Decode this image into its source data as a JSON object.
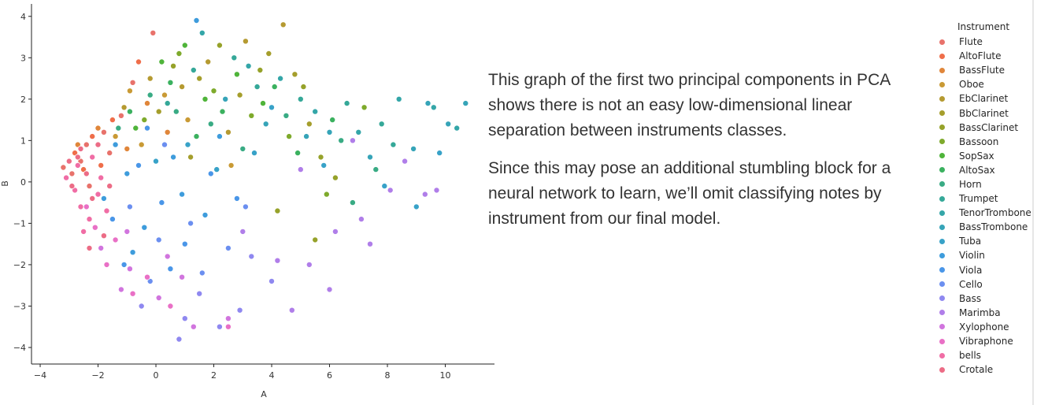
{
  "chart_data": {
    "type": "scatter",
    "xlabel": "A",
    "ylabel": "B",
    "xlim": [
      -4.3,
      11.7
    ],
    "ylim": [
      -4.4,
      4.3
    ],
    "xticks": [
      -4,
      -2,
      0,
      2,
      4,
      6,
      8,
      10
    ],
    "yticks": [
      -4,
      -3,
      -2,
      -1,
      0,
      1,
      2,
      3,
      4
    ],
    "legend_title": "Instrument",
    "legend_position": "right",
    "grid": false,
    "series": [
      {
        "name": "Flute",
        "color": "#e8726b",
        "points": [
          [
            -3.2,
            0.35
          ],
          [
            -2.9,
            0.2
          ],
          [
            -2.6,
            0.5
          ],
          [
            -2.4,
            0.9
          ],
          [
            -1.8,
            1.2
          ],
          [
            -1.2,
            1.6
          ],
          [
            -0.8,
            2.4
          ],
          [
            -0.1,
            3.6
          ],
          [
            -2.3,
            -0.1
          ],
          [
            -1.6,
            0.7
          ]
        ]
      },
      {
        "name": "AltoFlute",
        "color": "#ef6e4a",
        "points": [
          [
            -2.8,
            0.7
          ],
          [
            -2.2,
            1.1
          ],
          [
            -1.5,
            1.5
          ],
          [
            -0.6,
            2.9
          ],
          [
            -2.5,
            0.3
          ],
          [
            -1.9,
            0.4
          ]
        ]
      },
      {
        "name": "BassFlute",
        "color": "#e0863a",
        "points": [
          [
            -2.7,
            0.9
          ],
          [
            -2.0,
            1.3
          ],
          [
            -1.0,
            0.8
          ],
          [
            -0.3,
            1.9
          ],
          [
            0.4,
            1.2
          ]
        ]
      },
      {
        "name": "Oboe",
        "color": "#c99a35",
        "points": [
          [
            -1.4,
            1.1
          ],
          [
            -0.5,
            0.9
          ],
          [
            0.3,
            2.1
          ],
          [
            1.1,
            1.5
          ],
          [
            2.6,
            0.4
          ],
          [
            -0.9,
            2.2
          ]
        ]
      },
      {
        "name": "EbClarinet",
        "color": "#b59a31",
        "points": [
          [
            -0.2,
            2.5
          ],
          [
            0.9,
            2.3
          ],
          [
            1.8,
            2.9
          ],
          [
            3.1,
            3.4
          ],
          [
            4.4,
            3.8
          ],
          [
            2.5,
            1.2
          ],
          [
            -1.1,
            1.8
          ]
        ]
      },
      {
        "name": "BbClarinet",
        "color": "#a59e2c",
        "points": [
          [
            0.1,
            1.7
          ],
          [
            1.5,
            2.5
          ],
          [
            2.9,
            2.1
          ],
          [
            3.9,
            3.1
          ],
          [
            4.8,
            2.6
          ],
          [
            5.3,
            1.4
          ],
          [
            1.2,
            0.6
          ]
        ]
      },
      {
        "name": "BassClarinet",
        "color": "#96a22a",
        "points": [
          [
            0.6,
            2.8
          ],
          [
            2.2,
            3.3
          ],
          [
            3.6,
            2.7
          ],
          [
            5.1,
            2.3
          ],
          [
            5.7,
            0.6
          ],
          [
            6.2,
            0.1
          ],
          [
            4.2,
            -0.7
          ],
          [
            5.5,
            -1.4
          ]
        ]
      },
      {
        "name": "Bassoon",
        "color": "#7eaa2c",
        "points": [
          [
            -0.4,
            1.5
          ],
          [
            0.8,
            3.1
          ],
          [
            2.0,
            2.2
          ],
          [
            3.3,
            1.6
          ],
          [
            4.6,
            1.1
          ],
          [
            7.2,
            1.8
          ],
          [
            5.9,
            -0.3
          ]
        ]
      },
      {
        "name": "SopSax",
        "color": "#4fb43a",
        "points": [
          [
            0.2,
            2.9
          ],
          [
            1.0,
            3.3
          ],
          [
            1.7,
            2.0
          ],
          [
            2.8,
            2.6
          ],
          [
            3.7,
            1.9
          ],
          [
            -0.7,
            1.3
          ]
        ]
      },
      {
        "name": "AltoSax",
        "color": "#3bb15f",
        "points": [
          [
            -0.9,
            1.7
          ],
          [
            0.5,
            2.4
          ],
          [
            1.4,
            1.1
          ],
          [
            2.3,
            1.7
          ],
          [
            4.1,
            2.3
          ],
          [
            6.1,
            1.5
          ],
          [
            4.9,
            0.7
          ]
        ]
      },
      {
        "name": "Horn",
        "color": "#39ab84",
        "points": [
          [
            -1.3,
            1.3
          ],
          [
            -0.2,
            2.1
          ],
          [
            0.7,
            1.7
          ],
          [
            1.9,
            1.4
          ],
          [
            3.0,
            0.8
          ],
          [
            4.5,
            1.6
          ],
          [
            6.4,
            1.0
          ],
          [
            7.6,
            0.3
          ],
          [
            6.8,
            -0.5
          ]
        ]
      },
      {
        "name": "Trumpet",
        "color": "#35a898",
        "points": [
          [
            0.4,
            1.9
          ],
          [
            1.3,
            2.7
          ],
          [
            2.7,
            3.0
          ],
          [
            3.5,
            2.3
          ],
          [
            5.0,
            2.0
          ],
          [
            6.6,
            1.9
          ],
          [
            7.8,
            1.4
          ],
          [
            8.2,
            0.9
          ]
        ]
      },
      {
        "name": "TenorTrombone",
        "color": "#34a6a8",
        "points": [
          [
            1.6,
            3.6
          ],
          [
            3.2,
            2.8
          ],
          [
            4.3,
            2.5
          ],
          [
            5.5,
            1.7
          ],
          [
            7.0,
            1.2
          ],
          [
            8.4,
            2.0
          ],
          [
            9.6,
            1.8
          ],
          [
            10.4,
            1.3
          ]
        ]
      },
      {
        "name": "BassTrombone",
        "color": "#36a4b8",
        "points": [
          [
            2.4,
            2.0
          ],
          [
            3.8,
            1.4
          ],
          [
            5.2,
            1.1
          ],
          [
            6.0,
            1.2
          ],
          [
            7.4,
            0.6
          ],
          [
            8.9,
            0.8
          ],
          [
            9.4,
            1.9
          ],
          [
            10.1,
            1.4
          ],
          [
            10.7,
            1.9
          ]
        ]
      },
      {
        "name": "Tuba",
        "color": "#38a2c8",
        "points": [
          [
            0.0,
            0.5
          ],
          [
            1.1,
            0.9
          ],
          [
            2.1,
            0.3
          ],
          [
            3.4,
            0.7
          ],
          [
            4.0,
            1.8
          ],
          [
            5.8,
            0.4
          ],
          [
            7.9,
            -0.1
          ],
          [
            9.0,
            -0.6
          ],
          [
            9.8,
            0.7
          ]
        ]
      },
      {
        "name": "Violin",
        "color": "#3e9cdc",
        "points": [
          [
            -1.8,
            -0.4
          ],
          [
            -1.0,
            0.2
          ],
          [
            -0.4,
            -1.1
          ],
          [
            0.6,
            0.6
          ],
          [
            1.4,
            3.9
          ],
          [
            2.2,
            1.1
          ],
          [
            -0.8,
            -1.7
          ],
          [
            0.9,
            -0.3
          ],
          [
            1.7,
            -0.8
          ],
          [
            -1.4,
            0.9
          ]
        ]
      },
      {
        "name": "Viola",
        "color": "#4a96e8",
        "points": [
          [
            -1.5,
            -0.9
          ],
          [
            -0.6,
            0.4
          ],
          [
            0.2,
            -0.5
          ],
          [
            1.0,
            -1.5
          ],
          [
            1.9,
            0.2
          ],
          [
            2.8,
            -0.4
          ],
          [
            -0.3,
            1.3
          ],
          [
            0.5,
            -2.1
          ],
          [
            -1.1,
            -2.0
          ]
        ]
      },
      {
        "name": "Cello",
        "color": "#6b8ff0",
        "points": [
          [
            -0.9,
            -0.6
          ],
          [
            0.1,
            -1.4
          ],
          [
            1.2,
            -1.0
          ],
          [
            2.5,
            -1.6
          ],
          [
            3.1,
            -0.6
          ],
          [
            -0.2,
            -2.4
          ],
          [
            1.6,
            -2.2
          ],
          [
            0.3,
            0.9
          ]
        ]
      },
      {
        "name": "Bass",
        "color": "#8f88f0",
        "points": [
          [
            0.8,
            -3.8
          ],
          [
            1.5,
            -2.7
          ],
          [
            2.9,
            -3.1
          ],
          [
            4.0,
            -2.4
          ],
          [
            3.3,
            -1.8
          ],
          [
            -0.5,
            -3.0
          ],
          [
            1.0,
            -3.3
          ],
          [
            2.2,
            -3.5
          ]
        ]
      },
      {
        "name": "Marimba",
        "color": "#b07ee9",
        "points": [
          [
            3.0,
            -1.2
          ],
          [
            4.2,
            -1.9
          ],
          [
            5.3,
            -2.0
          ],
          [
            6.2,
            -1.2
          ],
          [
            7.1,
            -0.9
          ],
          [
            8.1,
            -0.2
          ],
          [
            9.3,
            -0.3
          ],
          [
            9.7,
            -0.2
          ],
          [
            6.0,
            -2.6
          ],
          [
            4.7,
            -3.1
          ],
          [
            5.0,
            0.3
          ],
          [
            7.4,
            -1.5
          ],
          [
            8.6,
            0.5
          ],
          [
            6.8,
            1.0
          ]
        ]
      },
      {
        "name": "Xylophone",
        "color": "#d175de",
        "points": [
          [
            -1.9,
            -1.6
          ],
          [
            -1.2,
            -2.6
          ],
          [
            -0.9,
            -2.1
          ],
          [
            0.1,
            -2.8
          ],
          [
            0.9,
            -2.3
          ],
          [
            1.3,
            -3.5
          ],
          [
            2.5,
            -3.3
          ],
          [
            -1.0,
            -1.2
          ],
          [
            0.4,
            -1.8
          ]
        ]
      },
      {
        "name": "Vibraphone",
        "color": "#e970c6",
        "points": [
          [
            -2.1,
            -1.1
          ],
          [
            -1.7,
            -2.0
          ],
          [
            -0.8,
            -2.7
          ],
          [
            -0.3,
            -2.3
          ],
          [
            0.5,
            -3.0
          ],
          [
            2.5,
            -3.5
          ],
          [
            -1.4,
            -1.4
          ],
          [
            -2.4,
            -0.6
          ]
        ]
      },
      {
        "name": "bells",
        "color": "#f06da5",
        "points": [
          [
            -3.1,
            0.1
          ],
          [
            -2.8,
            -0.2
          ],
          [
            -2.6,
            -0.6
          ],
          [
            -2.3,
            -0.9
          ],
          [
            -2.0,
            -0.3
          ],
          [
            -2.7,
            0.4
          ],
          [
            -2.2,
            0.6
          ],
          [
            -1.9,
            0.1
          ],
          [
            -2.5,
            -1.2
          ],
          [
            -1.7,
            -0.7
          ]
        ]
      },
      {
        "name": "Crotale",
        "color": "#ec6c86",
        "points": [
          [
            -3.0,
            0.5
          ],
          [
            -2.7,
            0.6
          ],
          [
            -2.4,
            0.2
          ],
          [
            -2.9,
            -0.1
          ],
          [
            -2.2,
            -0.4
          ],
          [
            -2.6,
            0.8
          ],
          [
            -2.0,
            0.9
          ],
          [
            -1.6,
            -0.1
          ],
          [
            -1.8,
            -1.3
          ],
          [
            -2.3,
            -1.6
          ]
        ]
      }
    ]
  },
  "caption": {
    "paragraph_1": "This graph of the first two principal components in PCA shows there is not an easy low-dimensional linear separation between instruments classes.",
    "paragraph_2": "Since this may pose an additional stumbling block for a neural network to learn, we’ll omit classifying notes by instrument from our final model."
  }
}
